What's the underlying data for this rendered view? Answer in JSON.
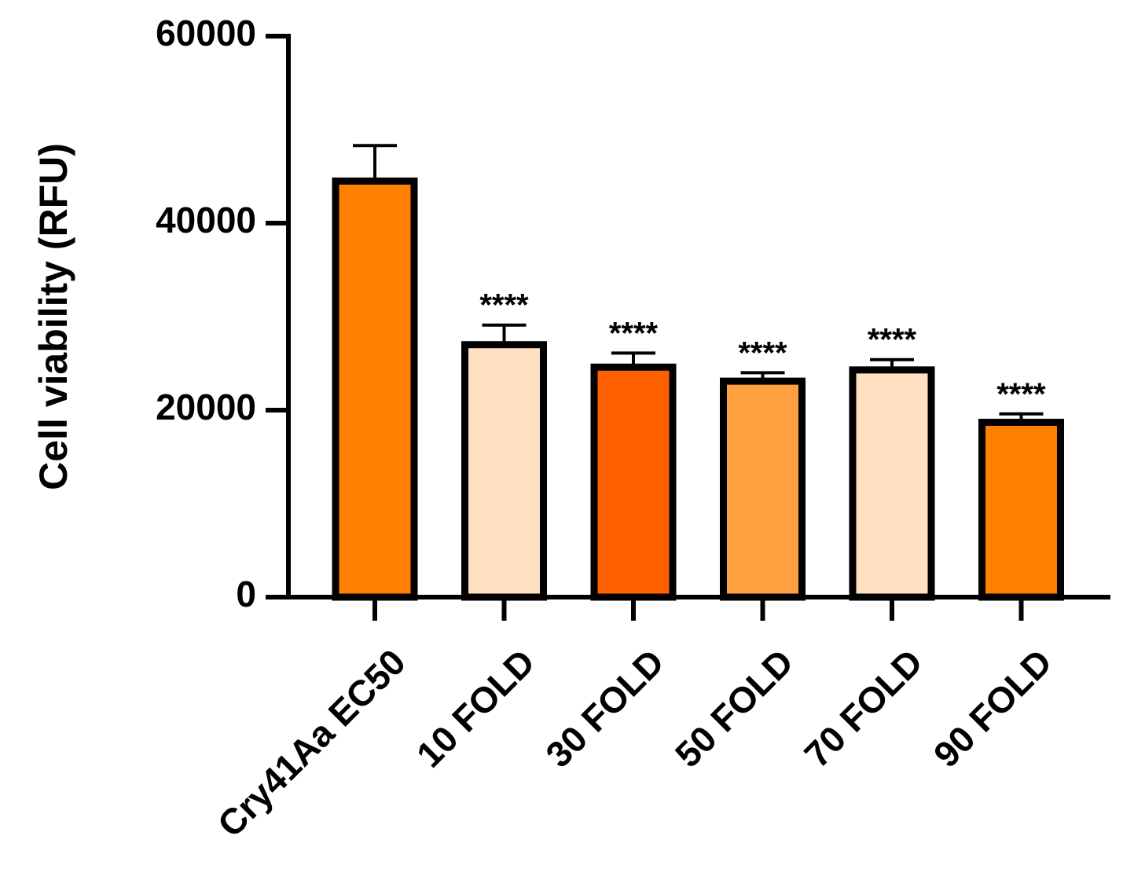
{
  "chart_data": {
    "type": "bar",
    "y_label": "Cell viability (RFU)",
    "categories": [
      "Cry41Aa EC50",
      "10 FOLD",
      "30 FOLD",
      "50 FOLD",
      "70 FOLD",
      "90 FOLD"
    ],
    "values": [
      44500,
      27000,
      24600,
      23100,
      24300,
      18700
    ],
    "errors": [
      3800,
      2100,
      1500,
      900,
      1100,
      900
    ],
    "colors": [
      "#ff8000",
      "#ffe0c0",
      "#ff6000",
      "#ffa040",
      "#ffe0c0",
      "#ff8000"
    ],
    "significance": [
      null,
      "****",
      "****",
      "****",
      "****",
      "****"
    ],
    "ylim": [
      0,
      60000
    ],
    "yticks": [
      0,
      20000,
      40000,
      60000
    ]
  }
}
